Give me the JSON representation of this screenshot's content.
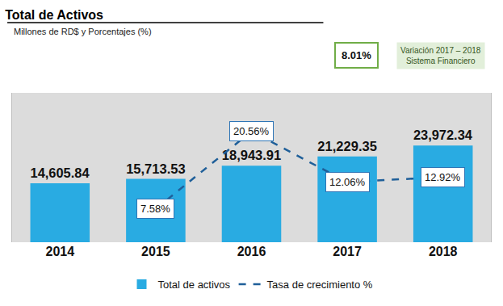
{
  "chart_data": {
    "type": "bar",
    "title": "Total de Activos",
    "subtitle": "Millones de RD$ y Porcentajes (%)",
    "categories": [
      "2014",
      "2015",
      "2016",
      "2017",
      "2018"
    ],
    "series": [
      {
        "name": "Total de activos",
        "type": "bar",
        "color": "#29abe2",
        "values": [
          14605.84,
          15713.53,
          18943.91,
          21229.35,
          23972.34
        ],
        "value_labels": [
          "14,605.84",
          "15,713.53",
          "18,943.91",
          "21,229.35",
          "23,972.34"
        ]
      },
      {
        "name": "Tasa de crecimiento %",
        "type": "line",
        "axis": "y2",
        "color": "#1f5f99",
        "line_style": "dashed",
        "values": [
          null,
          7.58,
          20.56,
          12.06,
          12.92
        ],
        "value_labels": [
          null,
          "7.58%",
          "20.56%",
          "12.06%",
          "12.92%"
        ]
      }
    ],
    "ylim": [
      0,
      37000
    ],
    "y2lim": [
      2,
      27
    ],
    "grid": false,
    "legend": "bottom",
    "data_labels": true,
    "tick_labels": "x",
    "annotations": [
      {
        "text": "8.01%"
      },
      {
        "text": "Variación 2017 – 2018\nSistema Financiero"
      }
    ]
  }
}
